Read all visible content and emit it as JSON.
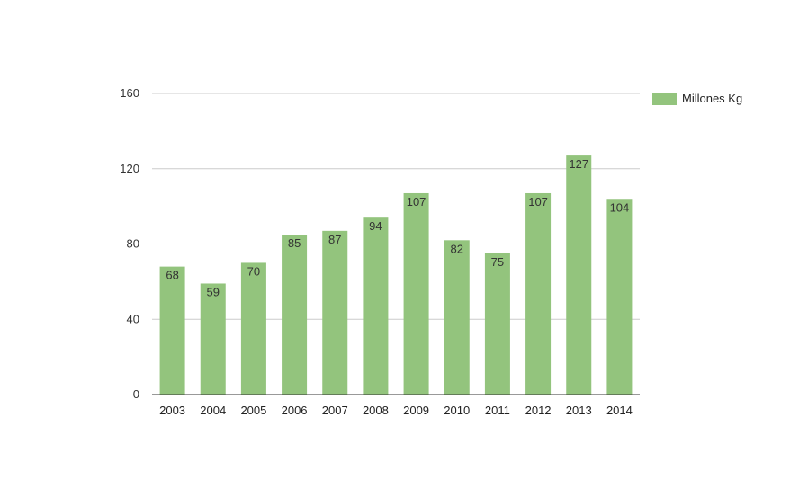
{
  "chart_data": {
    "type": "bar",
    "title": "",
    "xlabel": "",
    "ylabel": "",
    "categories": [
      "2003",
      "2004",
      "2005",
      "2006",
      "2007",
      "2008",
      "2009",
      "2010",
      "2011",
      "2012",
      "2013",
      "2014"
    ],
    "series": [
      {
        "name": "Millones Kg",
        "values": [
          68,
          59,
          70,
          85,
          87,
          94,
          107,
          82,
          75,
          107,
          127,
          104
        ]
      }
    ],
    "ylim": [
      0,
      160
    ],
    "yticks": [
      0,
      40,
      80,
      120,
      160
    ],
    "grid": true,
    "legend_position": "right",
    "data_labels": true,
    "colors": {
      "bar": "#93c47d",
      "grid": "#cccccc",
      "axis": "#333333",
      "text": "#333333"
    }
  }
}
